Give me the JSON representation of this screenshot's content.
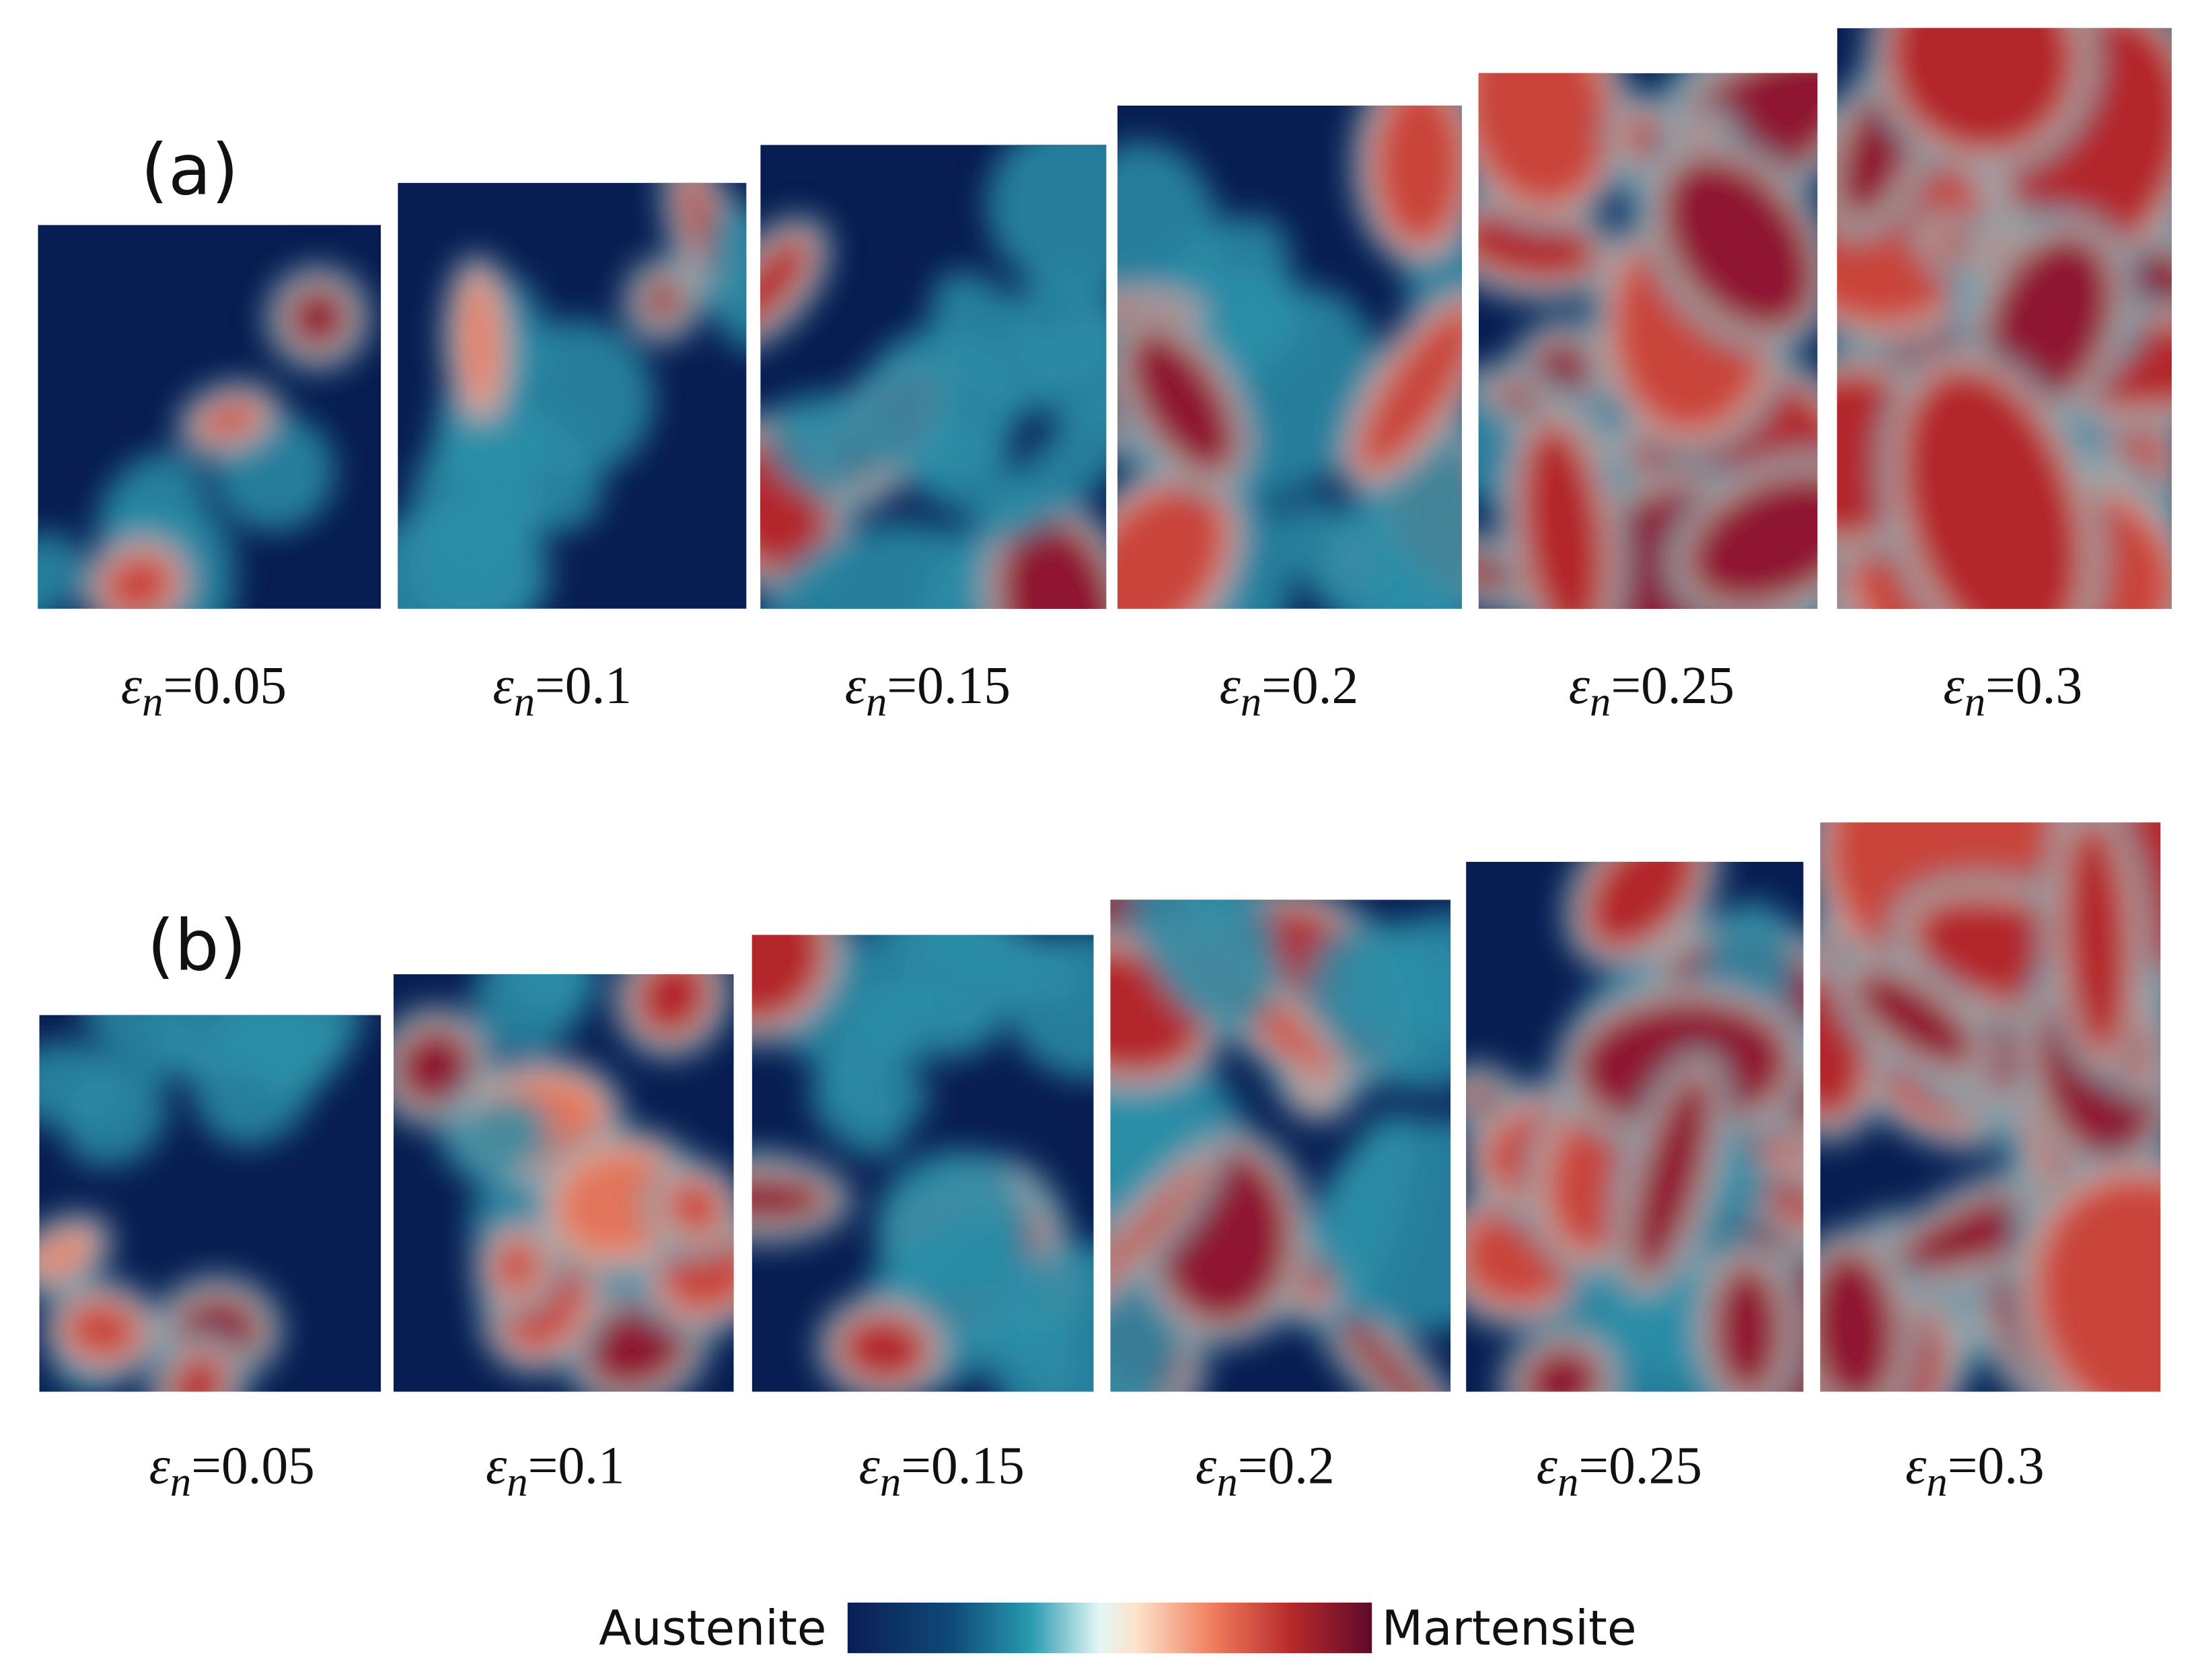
{
  "panels": [
    {
      "label": "(a)",
      "frames": [
        {
          "symbol": "ε",
          "sub": "n",
          "text": "=0.05"
        },
        {
          "symbol": "ε",
          "sub": "n",
          "text": "=0.1"
        },
        {
          "symbol": "ε",
          "sub": "n",
          "text": "=0.15"
        },
        {
          "symbol": "ε",
          "sub": "n",
          "text": "=0.2"
        },
        {
          "symbol": "ε",
          "sub": "n",
          "text": "=0.25"
        },
        {
          "symbol": "ε",
          "sub": "n",
          "text": "=0.3"
        }
      ]
    },
    {
      "label": "(b)",
      "frames": [
        {
          "symbol": "ε",
          "sub": "n",
          "text": "=0.05"
        },
        {
          "symbol": "ε",
          "sub": "n",
          "text": "=0.1"
        },
        {
          "symbol": "ε",
          "sub": "n",
          "text": "=0.15"
        },
        {
          "symbol": "ε",
          "sub": "n",
          "text": "=0.2"
        },
        {
          "symbol": "ε",
          "sub": "n",
          "text": "=0.25"
        },
        {
          "symbol": "ε",
          "sub": "n",
          "text": "=0.3"
        }
      ]
    }
  ],
  "colorbar": {
    "left": "Austenite",
    "right": "Martensite"
  }
}
